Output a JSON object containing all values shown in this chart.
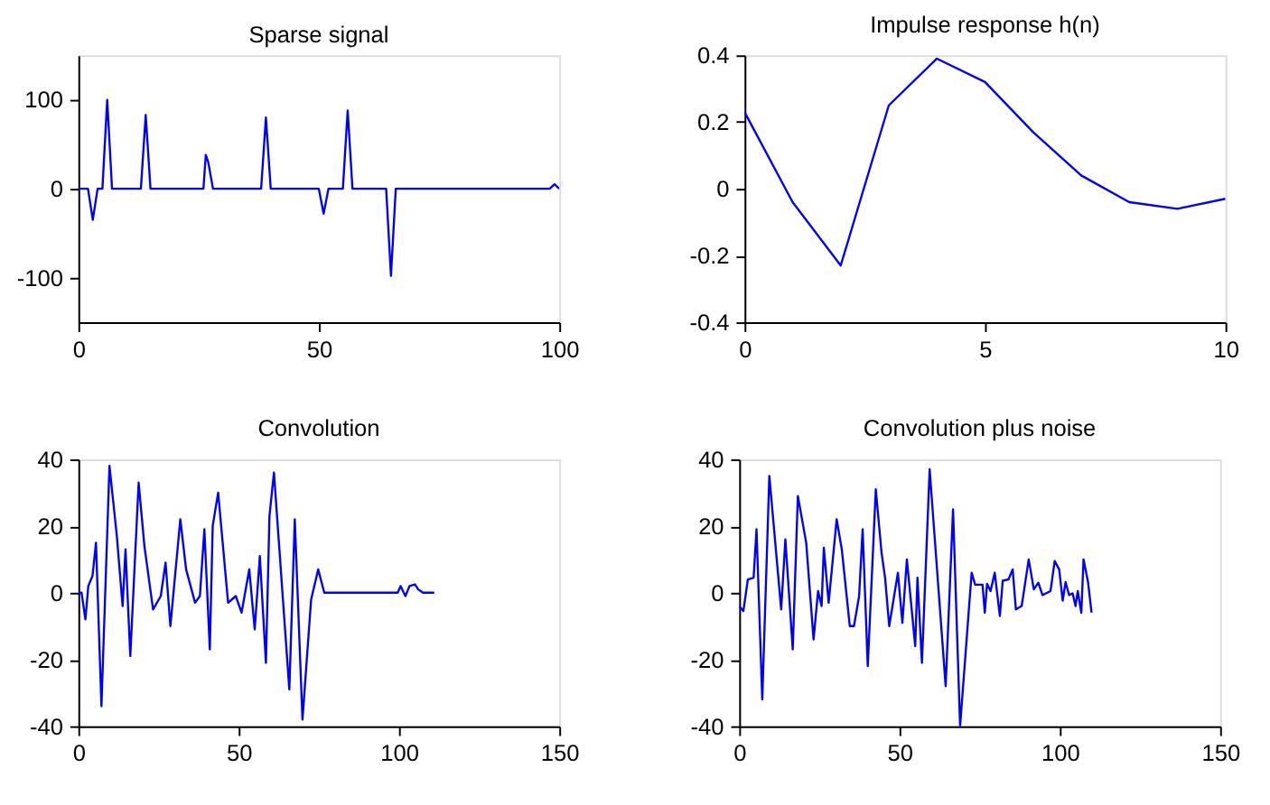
{
  "chart_data": [
    {
      "type": "line",
      "title": "Sparse signal",
      "series": [
        {
          "color": "#0000ff",
          "x": [
            0,
            2,
            3,
            4,
            5,
            6,
            7,
            13,
            14,
            15,
            26,
            26.5,
            27,
            28,
            38,
            39,
            40,
            50,
            51,
            52,
            55,
            56,
            57,
            64,
            65,
            66,
            98,
            99,
            100
          ],
          "values": [
            0,
            0,
            -35,
            0,
            0,
            100,
            0,
            0,
            83,
            0,
            0,
            38,
            30,
            0,
            0,
            80,
            0,
            0,
            -28,
            0,
            0,
            88,
            0,
            0,
            -98,
            0,
            0,
            5,
            0
          ]
        }
      ],
      "xlim": [
        0,
        100
      ],
      "xticks": [
        0,
        50,
        100
      ],
      "ylim": [
        -150,
        150
      ],
      "yticks": [
        -100,
        0,
        100
      ]
    },
    {
      "type": "line",
      "title": "Impulse response h(n)",
      "series": [
        {
          "color": "#0000ff",
          "x": [
            0,
            1,
            2,
            3,
            4,
            5,
            6,
            7,
            8,
            9,
            10
          ],
          "values": [
            0.23,
            -0.04,
            -0.23,
            0.25,
            0.39,
            0.32,
            0.17,
            0.04,
            -0.04,
            -0.06,
            -0.03
          ]
        }
      ],
      "xlim": [
        0,
        10
      ],
      "xticks": [
        0,
        5,
        10
      ],
      "ylim": [
        -0.4,
        0.4
      ],
      "yticks": [
        -0.4,
        -0.2,
        0,
        0.2,
        0.4
      ]
    },
    {
      "type": "line",
      "title": "Convolution",
      "series": [
        {
          "color": "#0000ff",
          "x": [
            0,
            1,
            2.2,
            3.1,
            4.4,
            5.5,
            7.2,
            9.7,
            12,
            13.8,
            14.7,
            16.2,
            18.8,
            20.6,
            23.3,
            25.7,
            27.2,
            28.7,
            31.8,
            33.6,
            36.4,
            37.9,
            39.3,
            41,
            41.9,
            43.6,
            46.7,
            49.1,
            50.9,
            53.3,
            55,
            56.6,
            58.5,
            59.6,
            61,
            65.8,
            67.5,
            69.9,
            72.6,
            74.8,
            76.7,
            99.6,
            100.5,
            102,
            103.3,
            105,
            106,
            107.5,
            111
          ],
          "values": [
            0,
            0,
            -8,
            2,
            5,
            15,
            -34,
            38,
            17,
            -4,
            13,
            -19,
            33,
            14,
            -5,
            -1,
            9,
            -10,
            22,
            7,
            -3,
            -1,
            19,
            -17,
            20,
            30,
            -3,
            -1,
            -6,
            7,
            -11,
            11,
            -21,
            23,
            36,
            -29,
            22,
            -38,
            -2,
            7,
            0,
            0,
            2,
            -1,
            2,
            2.5,
            1,
            0,
            0
          ]
        }
      ],
      "xlim": [
        0,
        150
      ],
      "xticks": [
        0,
        50,
        100,
        150
      ],
      "ylim": [
        -40,
        40
      ],
      "yticks": [
        -40,
        -20,
        0,
        20,
        40
      ]
    },
    {
      "type": "line",
      "title": "Convolution plus noise",
      "series": [
        {
          "color": "#0000ff",
          "x": [
            0,
            1.3,
            2.7,
            4.5,
            5.4,
            7.2,
            9.4,
            13.1,
            14.4,
            16.7,
            18.3,
            20.9,
            23.2,
            24.6,
            25.7,
            26.4,
            27.9,
            30.4,
            32,
            34.5,
            35.8,
            37.4,
            38.5,
            40.1,
            42.6,
            44.4,
            45.5,
            46.8,
            49.5,
            50.9,
            52.3,
            54.9,
            55.6,
            57,
            59.4,
            64.4,
            66.7,
            68.9,
            72.5,
            73.6,
            75.9,
            76.6,
            77.3,
            78.4,
            79.7,
            81.3,
            82.2,
            84,
            85.3,
            86.3,
            88.1,
            90.3,
            91.9,
            93.3,
            94.6,
            97.1,
            98.4,
            99.8,
            100.9,
            101.8,
            102.9,
            104,
            104.9,
            105.6,
            106.7,
            107.4,
            108.8,
            109.9
          ],
          "values": [
            -4,
            -5.5,
            4,
            4.5,
            19,
            -32,
            35,
            -5,
            16,
            -17,
            29,
            15,
            -14,
            0.5,
            -4,
            13.5,
            -3,
            22,
            13,
            -10,
            -10,
            -1,
            19,
            -22,
            31,
            12,
            4.5,
            -10,
            6,
            -9,
            10,
            -16,
            4.5,
            -21,
            37,
            -28,
            25,
            -40,
            6,
            2.4,
            2.4,
            -6,
            2.7,
            0.5,
            6,
            -7,
            3.6,
            4,
            7,
            -5,
            -4,
            10,
            1,
            3,
            -0.7,
            0.5,
            9.5,
            7,
            -2.4,
            3.2,
            -0.7,
            -0.2,
            -4,
            0.5,
            -6,
            10,
            3.2,
            -6
          ]
        }
      ],
      "xlim": [
        0,
        150
      ],
      "xticks": [
        0,
        50,
        100,
        150
      ],
      "ylim": [
        -40,
        40
      ],
      "yticks": [
        -40,
        -20,
        0,
        20,
        40
      ]
    }
  ]
}
